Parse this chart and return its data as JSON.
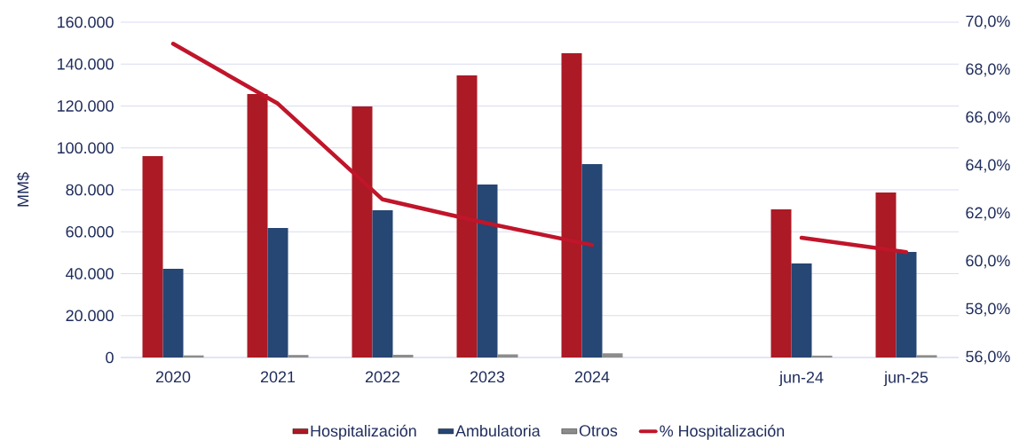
{
  "chart_data": {
    "type": "bar",
    "ylabel": "MM$",
    "categories": [
      "2020",
      "2021",
      "2022",
      "2023",
      "2024",
      null,
      "jun-24",
      "jun-25"
    ],
    "series": [
      {
        "name": "Hospitalización",
        "color": "#ab1a25",
        "values": [
          96100,
          125700,
          119800,
          134600,
          145200,
          null,
          70700,
          78700
        ]
      },
      {
        "name": "Ambulatoria",
        "color": "#264673",
        "values": [
          42300,
          61800,
          70300,
          82500,
          92300,
          null,
          44900,
          50400
        ]
      },
      {
        "name": "Otros",
        "color": "#8c8c8c",
        "values": [
          1000,
          1200,
          1300,
          1500,
          2000,
          null,
          900,
          1100
        ]
      },
      {
        "name": "% Hospitalización",
        "type": "line",
        "axis": "y2",
        "color": "#c0152a",
        "values": [
          69.1,
          66.6,
          62.6,
          61.6,
          60.7,
          null,
          61.0,
          60.4
        ]
      }
    ],
    "ylim": [
      0,
      160000
    ],
    "yticks": [
      0,
      {
        "value": 20000,
        "label": "20.000"
      },
      {
        "value": 40000,
        "label": "40.000"
      },
      {
        "value": 60000,
        "label": "60.000"
      },
      {
        "value": 80000,
        "label": "80.000"
      },
      {
        "value": 100000,
        "label": "100.000"
      },
      {
        "value": 120000,
        "label": "120.000"
      },
      {
        "value": 140000,
        "label": "140.000"
      },
      {
        "value": 160000,
        "label": "160.000"
      }
    ],
    "y2lim": [
      56,
      70
    ],
    "y2ticks": [
      {
        "value": 56,
        "label": "56,0%"
      },
      {
        "value": 58,
        "label": "58,0%"
      },
      {
        "value": 60,
        "label": "60,0%"
      },
      {
        "value": 62,
        "label": "62,0%"
      },
      {
        "value": 64,
        "label": "64,0%"
      },
      {
        "value": 66,
        "label": "66,0%"
      },
      {
        "value": 68,
        "label": "68,0%"
      },
      {
        "value": 70,
        "label": "70,0%"
      }
    ],
    "grid": "y",
    "legend": "bottom"
  }
}
